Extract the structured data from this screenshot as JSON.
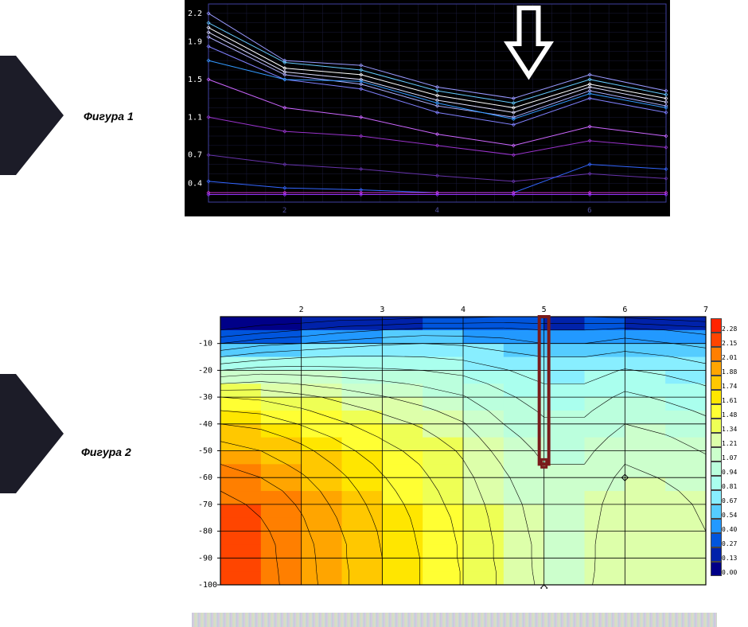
{
  "figure1_label": "Фигура 1",
  "figure2_label": "Фигура 2",
  "chart1": {
    "type": "line",
    "background": "#000000",
    "grid_color": "#1a1a3a",
    "axis_label_color": "#ffffff",
    "xtick_color": "#5050a0",
    "x_domain": [
      1,
      7
    ],
    "xticks": [
      2,
      4,
      6
    ],
    "yticks": [
      0.4,
      0.7,
      1.1,
      1.5,
      1.9,
      2.2
    ],
    "arrow": {
      "x": 5.2,
      "stroke": "#ffffff",
      "width": 6
    },
    "series": [
      {
        "color": "#9999ff",
        "v": [
          2.2,
          1.7,
          1.65,
          1.42,
          1.3,
          1.55,
          1.38
        ]
      },
      {
        "color": "#66ccff",
        "v": [
          2.1,
          1.68,
          1.6,
          1.38,
          1.25,
          1.5,
          1.34
        ]
      },
      {
        "color": "#ffffff",
        "v": [
          2.05,
          1.62,
          1.55,
          1.33,
          1.2,
          1.45,
          1.3
        ]
      },
      {
        "color": "#e0e0ff",
        "v": [
          2.0,
          1.58,
          1.5,
          1.28,
          1.15,
          1.42,
          1.26
        ]
      },
      {
        "color": "#b0b0ff",
        "v": [
          1.95,
          1.55,
          1.45,
          1.22,
          1.1,
          1.38,
          1.22
        ]
      },
      {
        "color": "#8080ff",
        "v": [
          1.85,
          1.5,
          1.4,
          1.15,
          1.02,
          1.3,
          1.15
        ]
      },
      {
        "color": "#3399ff",
        "v": [
          1.7,
          1.5,
          1.48,
          1.25,
          1.08,
          1.35,
          1.2
        ]
      },
      {
        "color": "#cc66ff",
        "v": [
          1.5,
          1.2,
          1.1,
          0.92,
          0.8,
          1.0,
          0.9
        ]
      },
      {
        "color": "#9933cc",
        "v": [
          1.1,
          0.95,
          0.9,
          0.8,
          0.7,
          0.85,
          0.78
        ]
      },
      {
        "color": "#6633aa",
        "v": [
          0.7,
          0.6,
          0.55,
          0.48,
          0.42,
          0.5,
          0.45
        ]
      },
      {
        "color": "#3366ff",
        "v": [
          0.42,
          0.35,
          0.33,
          0.3,
          0.3,
          0.6,
          0.55
        ]
      },
      {
        "color": "#cc33cc",
        "v": [
          0.3,
          0.3,
          0.3,
          0.3,
          0.3,
          0.3,
          0.3
        ]
      },
      {
        "color": "#9933ff",
        "v": [
          0.28,
          0.28,
          0.28,
          0.28,
          0.28,
          0.28,
          0.28
        ]
      }
    ]
  },
  "chart2": {
    "type": "heatmap",
    "x_domain": [
      1,
      7
    ],
    "y_domain": [
      -100,
      0
    ],
    "xticks": [
      2,
      3,
      4,
      5,
      6,
      7
    ],
    "yticks": [
      -10,
      -20,
      -30,
      -40,
      -50,
      -60,
      -70,
      -80,
      -90,
      -100
    ],
    "grid_color": "#000000",
    "marker": {
      "x": 5.0,
      "y_top": 0,
      "y_bot": -55,
      "stroke": "#7a1b1b",
      "width": 4
    },
    "legend": [
      {
        "c": "#ff2400",
        "v": "2.28"
      },
      {
        "c": "#ff4500",
        "v": "2.15"
      },
      {
        "c": "#ff7f00",
        "v": "2.01"
      },
      {
        "c": "#ffa500",
        "v": "1.88"
      },
      {
        "c": "#ffc800",
        "v": "1.74"
      },
      {
        "c": "#ffe600",
        "v": "1.61"
      },
      {
        "c": "#ffff33",
        "v": "1.48"
      },
      {
        "c": "#eeff55",
        "v": "1.34"
      },
      {
        "c": "#ddffaa",
        "v": "1.21"
      },
      {
        "c": "#ccffcc",
        "v": "1.07"
      },
      {
        "c": "#bbffdd",
        "v": "0.94"
      },
      {
        "c": "#aaffee",
        "v": "0.81"
      },
      {
        "c": "#88eeff",
        "v": "0.67"
      },
      {
        "c": "#55ccff",
        "v": "0.54"
      },
      {
        "c": "#2299ff",
        "v": "0.40"
      },
      {
        "c": "#0055dd",
        "v": "0.27"
      },
      {
        "c": "#0022aa",
        "v": "0.13"
      },
      {
        "c": "#000088",
        "v": "0.00"
      }
    ],
    "y_rows": [
      0,
      -5,
      -10,
      -15,
      -20,
      -25,
      -30,
      -35,
      -40,
      -45,
      -50,
      -55,
      -60,
      -65,
      -70,
      -75,
      -80,
      -85,
      -90,
      -95,
      -100
    ],
    "x_cols": [
      1.0,
      1.5,
      2.0,
      2.5,
      3.0,
      3.5,
      4.0,
      4.5,
      5.0,
      5.5,
      6.0,
      6.5,
      7.0
    ],
    "grid_values": [
      [
        0.0,
        0.0,
        0.0,
        0.05,
        0.05,
        0.1,
        0.1,
        0.13,
        0.13,
        0.13,
        0.1,
        0.05,
        0.0
      ],
      [
        0.13,
        0.2,
        0.27,
        0.35,
        0.4,
        0.45,
        0.45,
        0.45,
        0.4,
        0.4,
        0.45,
        0.4,
        0.35
      ],
      [
        0.4,
        0.5,
        0.54,
        0.6,
        0.65,
        0.67,
        0.65,
        0.6,
        0.54,
        0.54,
        0.6,
        0.55,
        0.5
      ],
      [
        0.67,
        0.75,
        0.8,
        0.82,
        0.82,
        0.81,
        0.78,
        0.72,
        0.67,
        0.67,
        0.72,
        0.68,
        0.62
      ],
      [
        0.94,
        1.0,
        1.0,
        0.98,
        0.96,
        0.94,
        0.9,
        0.82,
        0.75,
        0.75,
        0.82,
        0.78,
        0.72
      ],
      [
        1.21,
        1.25,
        1.2,
        1.15,
        1.1,
        1.05,
        1.0,
        0.9,
        0.81,
        0.81,
        0.9,
        0.86,
        0.8
      ],
      [
        1.48,
        1.45,
        1.38,
        1.3,
        1.22,
        1.15,
        1.08,
        0.97,
        0.87,
        0.87,
        0.97,
        0.92,
        0.86
      ],
      [
        1.61,
        1.58,
        1.5,
        1.4,
        1.32,
        1.24,
        1.15,
        1.02,
        0.92,
        0.92,
        1.02,
        0.98,
        0.92
      ],
      [
        1.74,
        1.7,
        1.6,
        1.5,
        1.4,
        1.32,
        1.22,
        1.07,
        0.96,
        0.96,
        1.07,
        1.03,
        0.97
      ],
      [
        1.85,
        1.8,
        1.7,
        1.58,
        1.47,
        1.38,
        1.27,
        1.12,
        1.0,
        1.0,
        1.12,
        1.08,
        1.02
      ],
      [
        1.95,
        1.88,
        1.78,
        1.65,
        1.53,
        1.43,
        1.32,
        1.16,
        1.04,
        1.04,
        1.16,
        1.12,
        1.06
      ],
      [
        2.01,
        1.95,
        1.84,
        1.71,
        1.58,
        1.47,
        1.35,
        1.2,
        1.07,
        1.07,
        1.21,
        1.16,
        1.1
      ],
      [
        2.1,
        2.01,
        1.9,
        1.76,
        1.62,
        1.5,
        1.38,
        1.23,
        1.1,
        1.1,
        1.25,
        1.2,
        1.14
      ],
      [
        2.15,
        2.08,
        1.95,
        1.8,
        1.65,
        1.53,
        1.4,
        1.25,
        1.12,
        1.12,
        1.28,
        1.23,
        1.17
      ],
      [
        2.2,
        2.12,
        1.99,
        1.83,
        1.68,
        1.55,
        1.42,
        1.27,
        1.14,
        1.14,
        1.3,
        1.25,
        1.19
      ],
      [
        2.24,
        2.15,
        2.02,
        1.86,
        1.7,
        1.57,
        1.44,
        1.28,
        1.15,
        1.15,
        1.31,
        1.26,
        1.2
      ],
      [
        2.26,
        2.18,
        2.04,
        1.88,
        1.72,
        1.58,
        1.45,
        1.29,
        1.16,
        1.16,
        1.32,
        1.27,
        1.21
      ],
      [
        2.28,
        2.2,
        2.06,
        1.9,
        1.73,
        1.59,
        1.46,
        1.3,
        1.17,
        1.17,
        1.32,
        1.27,
        1.21
      ],
      [
        2.28,
        2.2,
        2.07,
        1.9,
        1.74,
        1.6,
        1.46,
        1.3,
        1.17,
        1.17,
        1.32,
        1.27,
        1.21
      ],
      [
        2.28,
        2.21,
        2.07,
        1.91,
        1.74,
        1.6,
        1.47,
        1.31,
        1.17,
        1.17,
        1.33,
        1.28,
        1.22
      ],
      [
        2.28,
        2.21,
        2.08,
        1.91,
        1.74,
        1.6,
        1.47,
        1.31,
        1.18,
        1.18,
        1.33,
        1.28,
        1.22
      ]
    ]
  }
}
